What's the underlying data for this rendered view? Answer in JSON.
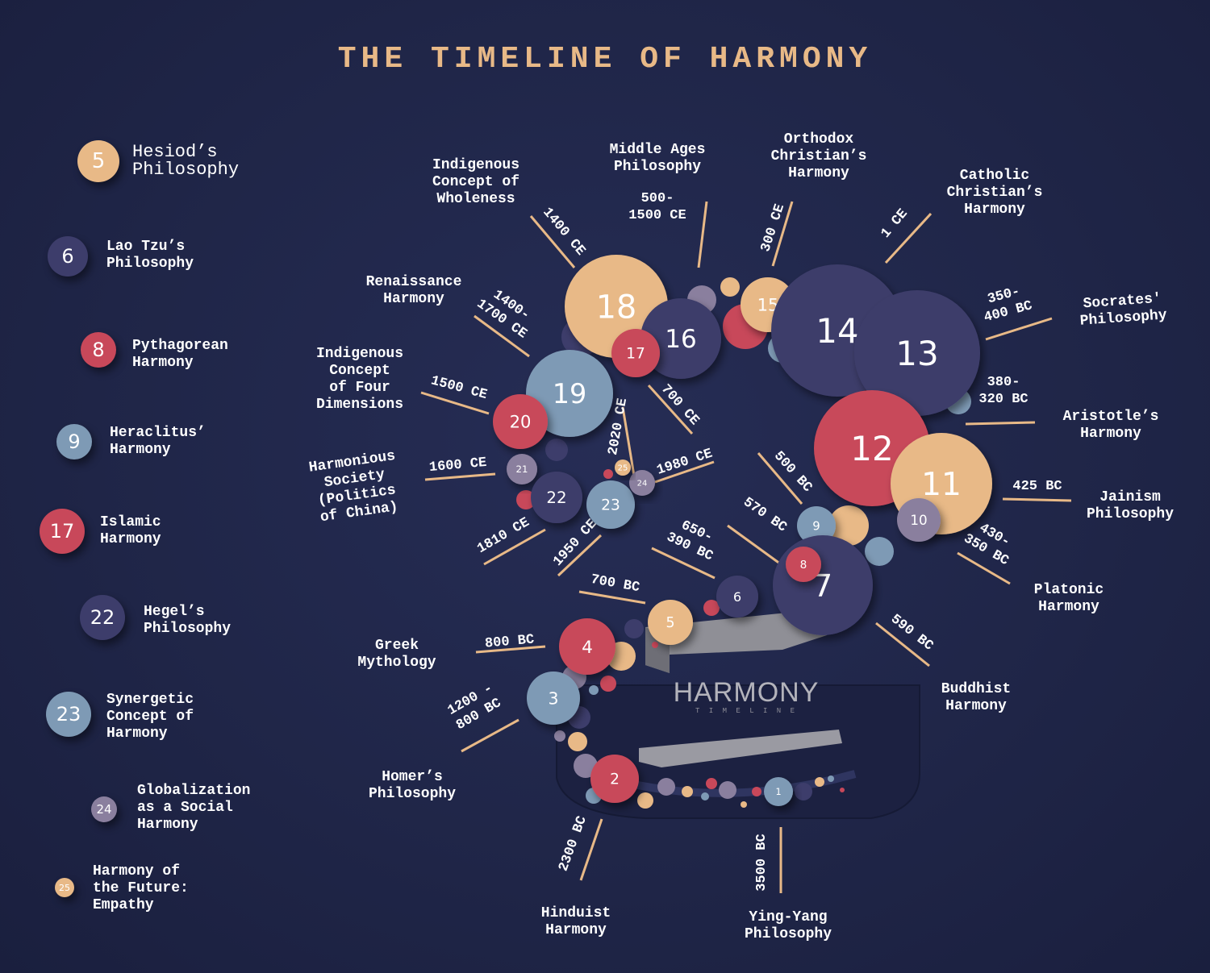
{
  "title": "THE TIMELINE OF HARMONY",
  "colors": {
    "background": "#1f2547",
    "title": "#e8b987",
    "tan": "#e8b987",
    "red": "#c8485a",
    "navy": "#3d3d6b",
    "blue": "#7e9ab5",
    "lavender": "#8a7f9e",
    "line": "#e8b987",
    "text": "#ffffff"
  },
  "legend": [
    {
      "number": "5",
      "label": "Hesiod’s\nPhilosophy",
      "color": "tan"
    },
    {
      "number": "6",
      "label": "Lao Tzu’s\nPhilosophy",
      "color": "navy"
    },
    {
      "number": "8",
      "label": "Pythagorean\nHarmony",
      "color": "red"
    },
    {
      "number": "9",
      "label": "Heraclitus’\nHarmony",
      "color": "blue"
    },
    {
      "number": "17",
      "label": "Islamic\nHarmony",
      "color": "red"
    },
    {
      "number": "22",
      "label": "Hegel’s\nPhilosophy",
      "color": "navy"
    },
    {
      "number": "23",
      "label": "Synergetic\nConcept of\nHarmony",
      "color": "blue"
    },
    {
      "number": "24",
      "label": "Globalization\nas a Social\nHarmony",
      "color": "lavender"
    },
    {
      "number": "25",
      "label": "Harmony of\nthe Future:\nEmpathy",
      "color": "tan"
    }
  ],
  "diagram": {
    "center_title": "HARMONY",
    "center_subtitle": "T I M E L I N E",
    "nodes": [
      {
        "number": "1",
        "color": "blue"
      },
      {
        "number": "2",
        "color": "red"
      },
      {
        "number": "3",
        "color": "blue"
      },
      {
        "number": "4",
        "color": "red"
      },
      {
        "number": "5",
        "color": "tan"
      },
      {
        "number": "6",
        "color": "navy"
      },
      {
        "number": "7",
        "color": "navy"
      },
      {
        "number": "8",
        "color": "red"
      },
      {
        "number": "9",
        "color": "blue"
      },
      {
        "number": "10",
        "color": "lavender"
      },
      {
        "number": "11",
        "color": "tan"
      },
      {
        "number": "12",
        "color": "red"
      },
      {
        "number": "13",
        "color": "navy"
      },
      {
        "number": "14",
        "color": "navy"
      },
      {
        "number": "15",
        "color": "tan"
      },
      {
        "number": "16",
        "color": "navy"
      },
      {
        "number": "17",
        "color": "red"
      },
      {
        "number": "18",
        "color": "tan"
      },
      {
        "number": "19",
        "color": "blue"
      },
      {
        "number": "20",
        "color": "red"
      },
      {
        "number": "21",
        "color": "lavender"
      },
      {
        "number": "22",
        "color": "navy"
      },
      {
        "number": "23",
        "color": "blue"
      },
      {
        "number": "24",
        "color": "lavender"
      },
      {
        "number": "25",
        "color": "tan"
      }
    ],
    "dates": [
      "3500 BC",
      "2300 BC",
      "1200 -\n800 BC",
      "800 BC",
      "700 BC",
      "650-\n390 BC",
      "570 BC",
      "500 BC",
      "590 BC",
      "430-\n350 BC",
      "425 BC",
      "380-\n320 BC",
      "350-\n400 BC",
      "1 CE",
      "300 CE",
      "500-\n1500 CE",
      "1400 CE",
      "1400-\n1700 CE",
      "700 CE",
      "1500 CE",
      "1600 CE",
      "1810 CE",
      "1950 CE",
      "2020 CE",
      "1980 CE"
    ],
    "labels": [
      "Ying-Yang\nPhilosophy",
      "Hinduist\nHarmony",
      "Homer’s\nPhilosophy",
      "Greek\nMythology",
      "Buddhist\nHarmony",
      "Platonic\nHarmony",
      "Jainism\nPhilosophy",
      "Aristotle’s\nHarmony",
      "Socrates'\nPhilosophy",
      "Catholic\nChristian’s\nHarmony",
      "Orthodox\nChristian’s\nHarmony",
      "Middle Ages\nPhilosophy",
      "Indigenous\nConcept of\nWholeness",
      "Renaissance\nHarmony",
      "Indigenous\nConcept\nof Four\nDimensions",
      "Harmonious\nSociety\n(Politics\nof China)"
    ]
  }
}
